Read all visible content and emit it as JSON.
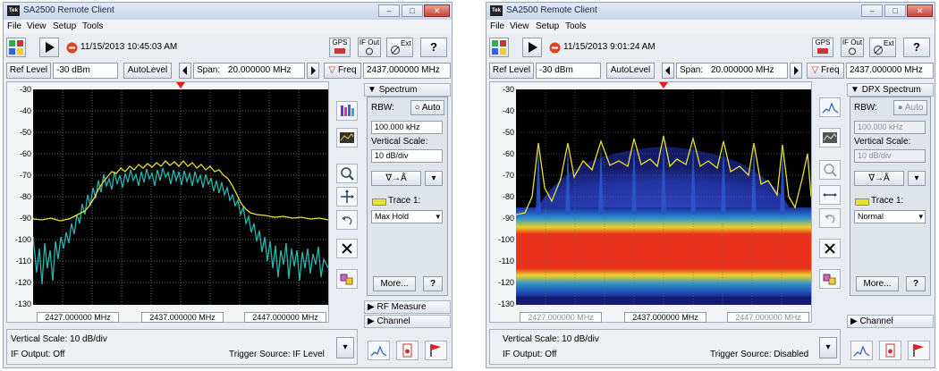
{
  "windows": [
    {
      "title": "SA2500 Remote Client",
      "app_logo": "Tek",
      "window_controls": {
        "minimize": "–",
        "maximize": "□",
        "close": "✕"
      },
      "menu": [
        "File",
        "View",
        "Setup",
        "Tools"
      ],
      "toolbar": {
        "timestamp": "11/15/2013 10:45:03 AM",
        "gps_label": "GPS",
        "ifout_label": "IF Out",
        "ext_label": "Ext",
        "help_label": "?"
      },
      "controls": {
        "ref_level_label": "Ref Level",
        "ref_level_value": "-30 dBm",
        "autolevel_label": "AutoLevel",
        "span_label": "Span:",
        "span_value": "20.000000 MHz",
        "freq_label": "Freq",
        "freq_value": "2437.000000 MHz"
      },
      "plot": {
        "y_ticks": [
          "-30",
          "-40",
          "-50",
          "-60",
          "-70",
          "-80",
          "-90",
          "-100",
          "-110",
          "-120",
          "-130"
        ],
        "freq_left": "2427.000000 MHz",
        "freq_center": "2437.000000 MHz",
        "freq_right": "2447.000000 MHz"
      },
      "side": {
        "section_title": "Spectrum",
        "rbw_label": "RBW:",
        "auto_label": "Auto",
        "rbw_value": "100.000 kHz",
        "vscale_label": "Vertical Scale:",
        "vscale_value": "10 dB/div",
        "trace_label": "Trace 1:",
        "trace_value": "Max Hold",
        "more_label": "More...",
        "help_label": "?",
        "rf_measure_label": "RF Measure",
        "channel_label": "Channel"
      },
      "status": {
        "vscale": "Vertical Scale: 10 dB/div",
        "if_output": "IF Output: Off",
        "trigger": "Trigger Source: IF Level"
      }
    },
    {
      "title": "SA2500 Remote Client",
      "app_logo": "Tek",
      "window_controls": {
        "minimize": "–",
        "maximize": "□",
        "close": "✕"
      },
      "menu": [
        "File",
        "View",
        "Setup",
        "Tools"
      ],
      "toolbar": {
        "timestamp": "11/15/2013 9:01:24 AM",
        "gps_label": "GPS",
        "ifout_label": "IF Out",
        "ext_label": "Ext",
        "help_label": "?"
      },
      "controls": {
        "ref_level_label": "Ref Level",
        "ref_level_value": "-30 dBm",
        "autolevel_label": "AutoLevel",
        "span_label": "Span:",
        "span_value": "20.000000 MHz",
        "freq_label": "Freq",
        "freq_value": "2437.000000 MHz"
      },
      "plot": {
        "y_ticks": [
          "-30",
          "-40",
          "-50",
          "-60",
          "-70",
          "-80",
          "-90",
          "-100",
          "-110",
          "-120",
          "-130"
        ],
        "freq_left": "2427.000000 MHz",
        "freq_center": "2437.000000 MHz",
        "freq_right": "2447.000000 MHz"
      },
      "side": {
        "section_title": "DPX Spectrum",
        "rbw_label": "RBW:",
        "auto_label": "Auto",
        "rbw_value": "100.000 kHz",
        "vscale_label": "Vertical Scale:",
        "vscale_value": "10 dB/div",
        "trace_label": "Trace 1:",
        "trace_value": "Normal",
        "more_label": "More...",
        "help_label": "?",
        "channel_label": "Channel"
      },
      "status": {
        "vscale": "Vertical Scale: 10 dB/div",
        "if_output": "IF Output: Off",
        "trigger": "Trigger Source: Disabled"
      }
    }
  ],
  "colors": {
    "max_hold_trace": "#e8e22a",
    "live_trace": "#26b7b0",
    "dpx_noise": "#e8321e",
    "dpx_density": "#2b3aa8",
    "marker": "#e02020"
  }
}
